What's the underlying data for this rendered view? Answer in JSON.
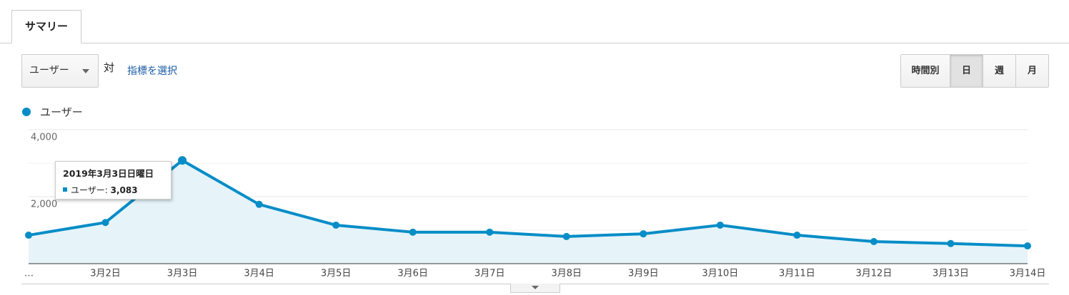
{
  "tabs": [
    "サマリー"
  ],
  "controls": {
    "metric": "ユーザー",
    "versus": "対",
    "select_metric": "指標を選択",
    "periods": [
      "時間別",
      "日",
      "週",
      "月"
    ],
    "selected_period": 1
  },
  "chart_data": {
    "type": "line",
    "categories": [
      "…",
      "3月2日",
      "3月3日",
      "3月4日",
      "3月5日",
      "3月6日",
      "3月7日",
      "3月8日",
      "3月9日",
      "3月10日",
      "3月11日",
      "3月12日",
      "3月13日",
      "3月14日"
    ],
    "series": [
      {
        "name": "ユーザー",
        "color": "#058dc7",
        "values": [
          850,
          1230,
          3083,
          1770,
          1150,
          940,
          940,
          810,
          890,
          1150,
          850,
          660,
          600,
          530
        ]
      }
    ],
    "ylim": [
      0,
      4000
    ],
    "yticks": [
      {
        "value": 2000,
        "label": "2,000"
      },
      {
        "value": 4000,
        "label": "4,000"
      }
    ],
    "grid": true,
    "minor_grid": true,
    "area": true,
    "tooltip": {
      "title": "2019年3月3日日曜日",
      "label": "ユーザー:",
      "value": "3,083"
    }
  }
}
